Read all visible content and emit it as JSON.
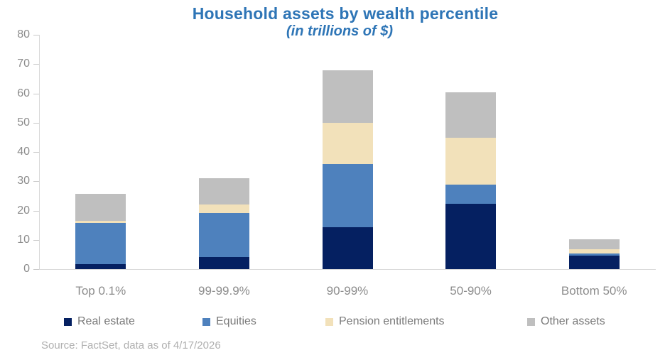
{
  "title": "Household assets by wealth percentile",
  "subtitle": "(in trillions of $)",
  "source_note": "Source: FactSet, data as of 4/17/2026",
  "colors": {
    "title": "#2E75B6",
    "axis_text": "#8C8C8C",
    "legend_text": "#7A7A7A",
    "source_text": "#AFAFAF",
    "axis_line": "#D9D9D9",
    "tick_line": "#C9C9C9"
  },
  "chart_data": {
    "type": "bar",
    "stacked": true,
    "title": "Household assets by wealth percentile",
    "subtitle": "(in trillions of $)",
    "units": "trillions of $",
    "xlabel": "",
    "ylabel": "",
    "categories": [
      "Top 0.1%",
      "99-99.9%",
      "90-99%",
      "50-90%",
      "Bottom 50%"
    ],
    "series": [
      {
        "name": "Real estate",
        "color": "#052061",
        "values": [
          1.7,
          4.2,
          14.3,
          22.2,
          4.5
        ]
      },
      {
        "name": "Equities",
        "color": "#4E81BD",
        "values": [
          14.0,
          15.0,
          21.7,
          6.7,
          0.8
        ]
      },
      {
        "name": "Pension entitlements",
        "color": "#F2E1BA",
        "values": [
          0.8,
          2.8,
          14.0,
          16.0,
          1.5
        ]
      },
      {
        "name": "Other assets",
        "color": "#BFBFBF",
        "values": [
          9.2,
          9.1,
          18.0,
          15.4,
          3.5
        ]
      }
    ],
    "totals": [
      25.7,
      31.1,
      68.0,
      60.3,
      10.3
    ],
    "ylim": [
      0,
      80
    ],
    "yticks": [
      0,
      10,
      20,
      30,
      40,
      50,
      60,
      70,
      80
    ],
    "grid": false,
    "legend_position": "bottom"
  }
}
